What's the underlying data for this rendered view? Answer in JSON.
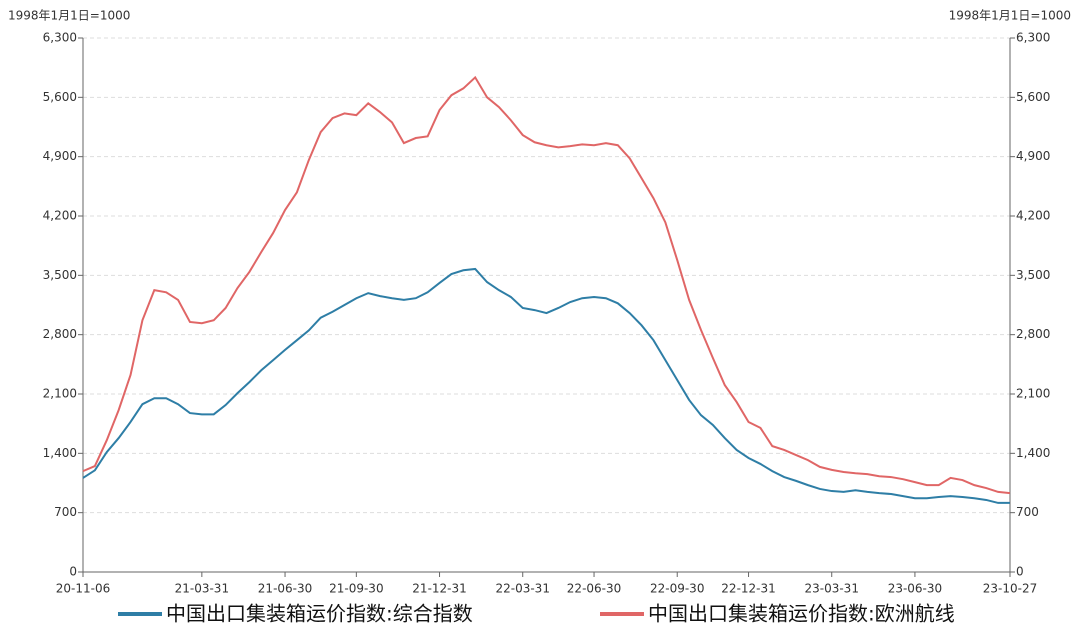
{
  "chart_data": {
    "type": "line",
    "left_unit": "1998年1月1日=1000",
    "right_unit": "1998年1月1日=1000",
    "categories": [
      "20-11-06",
      null,
      null,
      null,
      null,
      null,
      null,
      null,
      null,
      null,
      "21-03-31",
      null,
      null,
      null,
      null,
      null,
      null,
      "21-06-30",
      null,
      null,
      null,
      null,
      null,
      "21-09-30",
      null,
      null,
      null,
      null,
      null,
      null,
      "21-12-31",
      null,
      null,
      null,
      null,
      null,
      null,
      "22-03-31",
      null,
      null,
      null,
      null,
      null,
      "22-06-30",
      null,
      null,
      null,
      null,
      null,
      null,
      "22-09-30",
      null,
      null,
      null,
      null,
      null,
      "22-12-31",
      null,
      null,
      null,
      null,
      null,
      null,
      "23-03-31",
      null,
      null,
      null,
      null,
      null,
      null,
      "23-06-30",
      null,
      null,
      null,
      null,
      null,
      null,
      null,
      "23-10-27"
    ],
    "series": [
      {
        "name": "中国出口集装箱运价指数:综合指数",
        "color": "#2e7ea6",
        "values": [
          1110,
          1200,
          1415,
          1580,
          1770,
          1980,
          2050,
          2050,
          1980,
          1875,
          1860,
          1860,
          1970,
          2110,
          2240,
          2380,
          2500,
          2620,
          2735,
          2850,
          3000,
          3070,
          3150,
          3230,
          3290,
          3255,
          3230,
          3210,
          3230,
          3300,
          3410,
          3515,
          3560,
          3575,
          3420,
          3325,
          3245,
          3115,
          3090,
          3055,
          3115,
          3185,
          3230,
          3245,
          3230,
          3170,
          3055,
          2910,
          2735,
          2500,
          2265,
          2030,
          1850,
          1735,
          1580,
          1440,
          1345,
          1275,
          1190,
          1120,
          1075,
          1025,
          980,
          955,
          945,
          965,
          945,
          930,
          920,
          895,
          870,
          870,
          885,
          895,
          885,
          870,
          850,
          815,
          815
        ]
      },
      {
        "name": "中国出口集装箱运价指数:欧洲航线",
        "color": "#e06666",
        "values": [
          1190,
          1250,
          1555,
          1910,
          2325,
          2970,
          3325,
          3300,
          3210,
          2950,
          2935,
          2970,
          3115,
          3350,
          3540,
          3775,
          4000,
          4270,
          4480,
          4860,
          5190,
          5355,
          5410,
          5390,
          5530,
          5425,
          5305,
          5060,
          5120,
          5140,
          5450,
          5625,
          5705,
          5835,
          5600,
          5485,
          5330,
          5155,
          5070,
          5035,
          5010,
          5025,
          5045,
          5035,
          5060,
          5035,
          4880,
          4645,
          4410,
          4125,
          3680,
          3210,
          2855,
          2525,
          2205,
          2005,
          1770,
          1700,
          1485,
          1440,
          1380,
          1320,
          1240,
          1205,
          1180,
          1165,
          1155,
          1130,
          1120,
          1095,
          1060,
          1025,
          1025,
          1110,
          1085,
          1025,
          990,
          945,
          930
        ]
      }
    ],
    "ylim": [
      0,
      6300
    ],
    "yticks": [
      0,
      700,
      {
        "value": 1400,
        "label": "1,400"
      },
      {
        "value": 2100,
        "label": "2,100"
      },
      {
        "value": 2800,
        "label": "2,800"
      },
      {
        "value": 3500,
        "label": "3,500"
      },
      {
        "value": 4200,
        "label": "4,200"
      },
      {
        "value": 4900,
        "label": "4,900"
      },
      {
        "value": 5600,
        "label": "5,600"
      },
      {
        "value": 6300,
        "label": "6,300"
      }
    ],
    "y2lim": [
      0,
      6300
    ],
    "y2ticks": [
      0,
      700,
      {
        "value": 1400,
        "label": "1,400"
      },
      {
        "value": 2100,
        "label": "2,100"
      },
      {
        "value": 2800,
        "label": "2,800"
      },
      {
        "value": 3500,
        "label": "3,500"
      },
      {
        "value": 4200,
        "label": "4,200"
      },
      {
        "value": 4900,
        "label": "4,900"
      },
      {
        "value": 5600,
        "label": "5,600"
      },
      {
        "value": 6300,
        "label": "6,300"
      }
    ],
    "grid": true,
    "legend": "bottom"
  }
}
